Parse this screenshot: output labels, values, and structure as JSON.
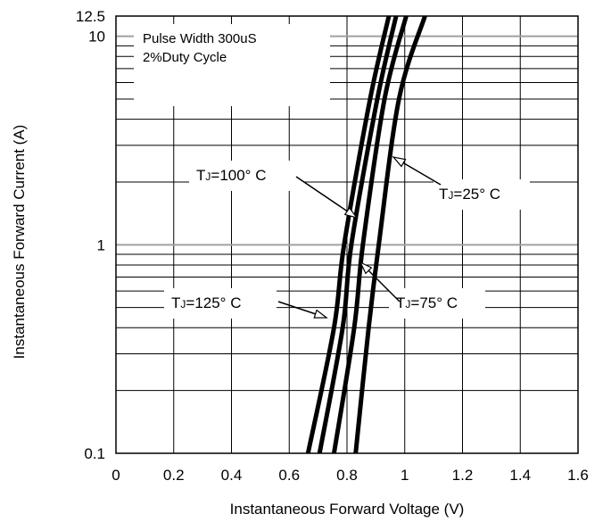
{
  "chart_data": {
    "type": "line",
    "xlabel": "Instantaneous Forward Voltage (V)",
    "ylabel": "Instantaneous Forward Current (A)",
    "xlim": [
      0,
      1.6
    ],
    "ylim": [
      0.1,
      12.5
    ],
    "yscale": "log",
    "x_ticks": [
      "0",
      "0.2",
      "0.4",
      "0.6",
      "0.8",
      "1",
      "1.2",
      "1.4",
      "1.6"
    ],
    "y_ticks": [
      {
        "value": 0.1,
        "label": "0.1"
      },
      {
        "value": 1,
        "label": "1"
      },
      {
        "value": 10,
        "label": "10"
      },
      {
        "value": 12.5,
        "label": "12.5"
      }
    ],
    "grid": true,
    "notes": [
      "Pulse Width 300uS",
      "2%Duty Cycle"
    ],
    "series": [
      {
        "name": "TJ=125° C",
        "points": [
          [
            0.665,
            0.1
          ],
          [
            0.755,
            0.4
          ],
          [
            0.79,
            1
          ],
          [
            0.88,
            5
          ],
          [
            0.945,
            12.5
          ]
        ]
      },
      {
        "name": "TJ=100° C",
        "points": [
          [
            0.705,
            0.1
          ],
          [
            0.785,
            0.4
          ],
          [
            0.815,
            1
          ],
          [
            0.905,
            5
          ],
          [
            0.97,
            12.5
          ]
        ]
      },
      {
        "name": "TJ=75° C",
        "points": [
          [
            0.755,
            0.1
          ],
          [
            0.825,
            0.4
          ],
          [
            0.855,
            1
          ],
          [
            0.93,
            5
          ],
          [
            1.005,
            12.5
          ]
        ]
      },
      {
        "name": "TJ=25° C",
        "points": [
          [
            0.83,
            0.1
          ],
          [
            0.875,
            0.4
          ],
          [
            0.91,
            1
          ],
          [
            0.98,
            5
          ],
          [
            1.07,
            12.5
          ]
        ]
      }
    ],
    "annotations": [
      {
        "series": 1,
        "main": "T",
        "sub": "J",
        "rest": "=100° C"
      },
      {
        "series": 3,
        "main": "T",
        "sub": "J",
        "rest": "=25° C"
      },
      {
        "series": 0,
        "main": "T",
        "sub": "J",
        "rest": "=125° C"
      },
      {
        "series": 2,
        "main": "T",
        "sub": "J",
        "rest": "=75° C"
      }
    ]
  }
}
